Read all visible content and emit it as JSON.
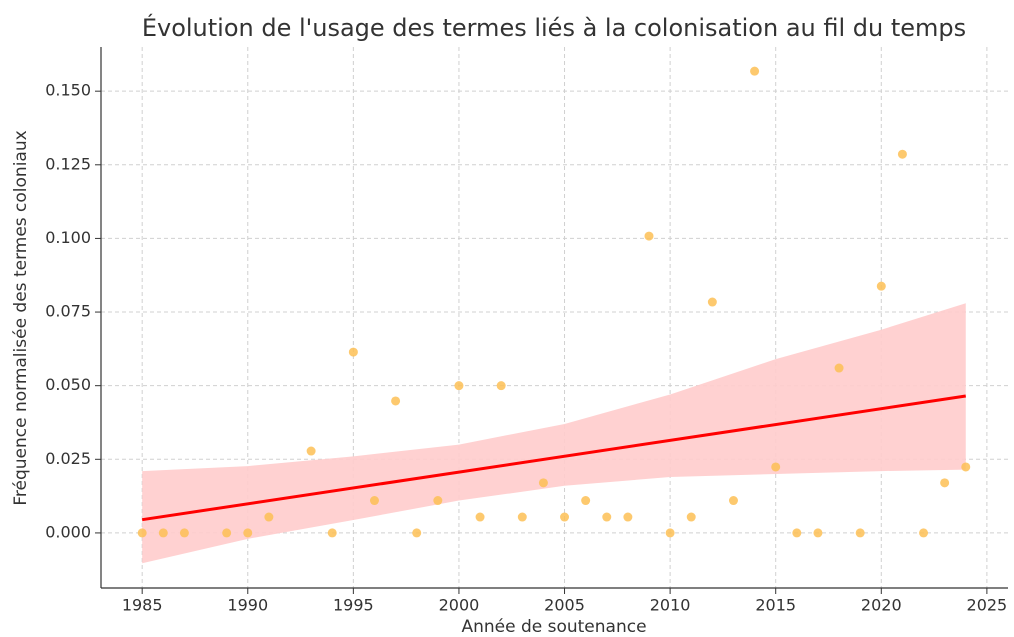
{
  "chart_data": {
    "type": "scatter",
    "title": "Évolution de l'usage des termes liés à la colonisation au fil du temps",
    "xlabel": "Année de soutenance",
    "ylabel": "Fréquence normalisée des termes coloniaux",
    "x": [
      1985,
      1986,
      1987,
      1989,
      1990,
      1991,
      1993,
      1994,
      1995,
      1996,
      1997,
      1998,
      1999,
      2000,
      2001,
      2002,
      2003,
      2004,
      2005,
      2006,
      2007,
      2008,
      2009,
      2010,
      2011,
      2012,
      2013,
      2014,
      2015,
      2016,
      2017,
      2018,
      2019,
      2020,
      2021,
      2022,
      2023,
      2024
    ],
    "values": [
      0,
      0,
      0,
      0,
      0,
      0.0054,
      0.0278,
      0,
      0.0614,
      0.011,
      0.0448,
      0,
      0.011,
      0.05,
      0.0054,
      0.05,
      0.0054,
      0.017,
      0.0054,
      0.011,
      0.0054,
      0.0054,
      0.1008,
      0,
      0.0054,
      0.0784,
      0.011,
      0.1568,
      0.0224,
      0,
      0,
      0.056,
      0,
      0.0838,
      0.1286,
      0,
      0.017,
      0.0224
    ],
    "color": "#fdbf55",
    "fit": {
      "x": [
        1985,
        2024
      ],
      "values": [
        0.0045,
        0.0465
      ],
      "color": "#ff0000"
    },
    "band": {
      "x": [
        1985,
        1990,
        1995,
        2000,
        2005,
        2010,
        2015,
        2020,
        2024
      ],
      "upper": [
        0.021,
        0.0227,
        0.026,
        0.03,
        0.037,
        0.047,
        0.059,
        0.069,
        0.078
      ],
      "lower": [
        -0.0103,
        -0.002,
        0.0044,
        0.011,
        0.016,
        0.019,
        0.02,
        0.021,
        0.0215
      ],
      "color": "#ffcccc"
    },
    "xlim": [
      1983.05,
      2026
    ],
    "ylim": [
      -0.0187,
      0.165
    ],
    "xticks": [
      1985,
      1990,
      1995,
      2000,
      2005,
      2010,
      2015,
      2020,
      2025
    ],
    "yticks": [
      {
        "value": 0,
        "label": "0.000"
      },
      {
        "value": 0.025,
        "label": "0.025"
      },
      {
        "value": 0.05,
        "label": "0.050"
      },
      {
        "value": 0.075,
        "label": "0.075"
      },
      {
        "value": 0.1,
        "label": "0.100"
      },
      {
        "value": 0.125,
        "label": "0.125"
      },
      {
        "value": 0.15,
        "label": "0.150"
      }
    ],
    "grid": true
  }
}
